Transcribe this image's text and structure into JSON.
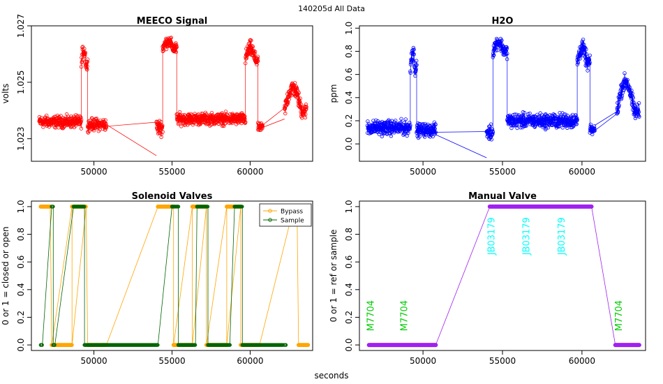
{
  "figure": {
    "overall_title": "140205d   All Data",
    "xlabel": "seconds"
  },
  "chart_data": [
    {
      "id": "meeco",
      "type": "scatter",
      "title": "MEECO Signal",
      "xlabel": "",
      "ylabel": "volts",
      "xlim": [
        46000,
        64000
      ],
      "ylim": [
        1.0222,
        1.027
      ],
      "xticks": [
        50000,
        55000,
        60000
      ],
      "yticks": [
        1.023,
        1.025,
        1.027
      ],
      "ytick_labels": [
        "1.023",
        "1.025",
        "1.027"
      ],
      "color": "#ff0000",
      "segments": [
        {
          "t0": 46500,
          "t1": 49200,
          "base": 1.0236,
          "amp": 0.0003
        },
        {
          "t0": 49200,
          "t1": 49600,
          "base": 1.0256,
          "amp": 0.0004,
          "peak": 1.0263
        },
        {
          "t0": 49600,
          "t1": 50800,
          "base": 1.0235,
          "amp": 0.0003
        },
        {
          "t0": 54000,
          "t1": 54400,
          "base": 1.0234,
          "amp": 0.0004
        },
        {
          "t0": 54400,
          "t1": 55300,
          "base": 1.0262,
          "amp": 0.0003,
          "peak": 1.0265
        },
        {
          "t0": 55300,
          "t1": 59700,
          "base": 1.0237,
          "amp": 0.0003
        },
        {
          "t0": 59700,
          "t1": 60500,
          "base": 1.0258,
          "amp": 0.0004,
          "peak": 1.0263
        },
        {
          "t0": 60500,
          "t1": 60800,
          "base": 1.0234,
          "amp": 0.0002
        },
        {
          "t0": 62200,
          "t1": 63600,
          "base": 1.024,
          "amp": 0.0004,
          "peak": 1.025
        }
      ],
      "gaps": [
        [
          50800,
          1.0235,
          54000,
          1.0224
        ],
        [
          60800,
          1.0234,
          62200,
          1.0237
        ]
      ]
    },
    {
      "id": "h2o",
      "type": "scatter",
      "title": "H2O",
      "xlabel": "",
      "ylabel": "ppm",
      "xlim": [
        46000,
        64000
      ],
      "ylim": [
        -0.15,
        1.02
      ],
      "xticks": [
        50000,
        55000,
        60000
      ],
      "yticks": [
        0.0,
        0.2,
        0.4,
        0.6,
        0.8,
        1.0
      ],
      "ytick_labels": [
        "0.0",
        "0.2",
        "0.4",
        "0.6",
        "0.8",
        "1.0"
      ],
      "color": "#0000ff",
      "segments": [
        {
          "t0": 46500,
          "t1": 49200,
          "base": 0.14,
          "amp": 0.09
        },
        {
          "t0": 49200,
          "t1": 49600,
          "base": 0.65,
          "amp": 0.1,
          "peak": 0.84
        },
        {
          "t0": 49600,
          "t1": 50800,
          "base": 0.12,
          "amp": 0.08
        },
        {
          "t0": 54000,
          "t1": 54400,
          "base": 0.1,
          "amp": 0.1
        },
        {
          "t0": 54400,
          "t1": 55300,
          "base": 0.8,
          "amp": 0.08,
          "peak": 0.9
        },
        {
          "t0": 55300,
          "t1": 59700,
          "base": 0.2,
          "amp": 0.09
        },
        {
          "t0": 59700,
          "t1": 60500,
          "base": 0.7,
          "amp": 0.1,
          "peak": 0.86
        },
        {
          "t0": 60500,
          "t1": 60800,
          "base": 0.12,
          "amp": 0.06
        },
        {
          "t0": 62200,
          "t1": 63600,
          "base": 0.28,
          "amp": 0.1,
          "peak": 0.6
        }
      ],
      "gaps": [
        [
          50800,
          0.08,
          54000,
          -0.12
        ],
        [
          60800,
          0.16,
          62200,
          0.28
        ]
      ]
    },
    {
      "id": "solenoid",
      "type": "line",
      "title": "Solenoid Valves",
      "xlabel": "",
      "ylabel": "0 or 1 = closed or open",
      "xlim": [
        46000,
        64000
      ],
      "ylim": [
        -0.04,
        1.04
      ],
      "xticks": [
        50000,
        55000,
        60000
      ],
      "yticks": [
        0.0,
        0.2,
        0.4,
        0.6,
        0.8,
        1.0
      ],
      "ytick_labels": [
        "0.0",
        "0.2",
        "0.4",
        "0.6",
        "0.8",
        "1.0"
      ],
      "legend": {
        "position": "top-right",
        "entries": [
          "Bypass",
          "Sample"
        ]
      },
      "series": [
        {
          "name": "Bypass",
          "color": "#ffa500",
          "on_intervals": [
            [
              46600,
              47200
            ],
            [
              48600,
              49500
            ],
            [
              54100,
              55100
            ],
            [
              56300,
              57200
            ],
            [
              58500,
              59400
            ],
            [
              62800,
              63000
            ]
          ],
          "off_intervals": [
            [
              47300,
              48600
            ],
            [
              49600,
              50800
            ],
            [
              55100,
              56300
            ],
            [
              57200,
              58500
            ],
            [
              59400,
              60600
            ],
            [
              63100,
              63700
            ]
          ]
        },
        {
          "name": "Sample",
          "color": "#006400",
          "on_intervals": [
            [
              47300,
              47400
            ],
            [
              48700,
              49400
            ],
            [
              55000,
              55400
            ],
            [
              56600,
              57300
            ],
            [
              59000,
              59500
            ]
          ],
          "off_intervals": [
            [
              46600,
              46700
            ],
            [
              47400,
              47500
            ],
            [
              49400,
              54100
            ],
            [
              55400,
              56500
            ],
            [
              57300,
              58700
            ],
            [
              59500,
              62100
            ],
            [
              62200,
              62300
            ]
          ]
        }
      ]
    },
    {
      "id": "manual",
      "type": "line",
      "title": "Manual Valve",
      "xlabel": "",
      "ylabel": "0 or 1 = ref or sample",
      "xlim": [
        46000,
        64000
      ],
      "ylim": [
        -0.04,
        1.04
      ],
      "xticks": [
        50000,
        55000,
        60000
      ],
      "yticks": [
        0.0,
        0.2,
        0.4,
        0.6,
        0.8,
        1.0
      ],
      "ytick_labels": [
        "0.0",
        "0.2",
        "0.4",
        "0.6",
        "0.8",
        "1.0"
      ],
      "color": "#a020f0",
      "x": [
        46600,
        50800,
        54200,
        60600,
        62100,
        63600
      ],
      "y": [
        0,
        0,
        1,
        1,
        0,
        0
      ],
      "annotations": [
        {
          "text": "M7704",
          "x": 46900,
          "y": 0.1,
          "color": "#00cc00"
        },
        {
          "text": "M7704",
          "x": 49000,
          "y": 0.1,
          "color": "#00cc00"
        },
        {
          "text": "JB03179",
          "x": 54500,
          "y": 0.65,
          "color": "#00ffff"
        },
        {
          "text": "JB03179",
          "x": 56700,
          "y": 0.65,
          "color": "#00ffff"
        },
        {
          "text": "JB03179",
          "x": 58900,
          "y": 0.65,
          "color": "#00ffff"
        },
        {
          "text": "M7704",
          "x": 62500,
          "y": 0.1,
          "color": "#00cc00"
        }
      ]
    }
  ]
}
